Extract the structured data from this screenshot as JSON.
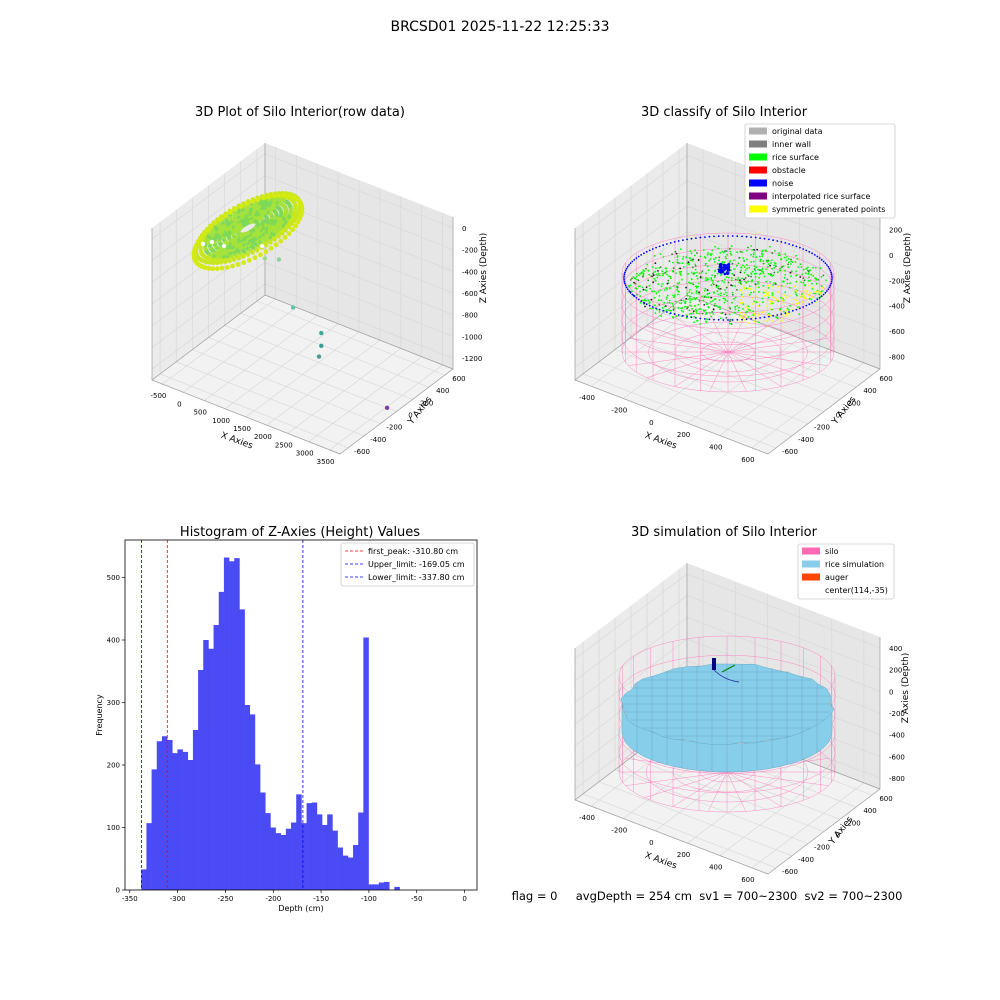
{
  "suptitle": "BRCSD01 2025-11-22 12:25:33",
  "footer": "flag = 0     avgDepth = 254 cm  sv1 = 700~2300  sv2 = 700~2300",
  "colors": {
    "silo": "#ff69b4",
    "rice_simulation": "#87ceeb",
    "auger": "#ff4500",
    "original_data": "#b0b0b0",
    "inner_wall": "#808080",
    "rice_surface": "#00ff00",
    "obstacle": "#ff0000",
    "noise": "#0000ff",
    "interpolated": "#800080",
    "symmetric": "#ffff00",
    "hist_bar": "#4b4bf5"
  },
  "chart_data": [
    {
      "type": "scatter3d",
      "title": "3D Plot of Silo Interior(row data)",
      "xlabel": "X Axies",
      "ylabel": "Y Axies",
      "zlabel": "Z Axies (Depth)",
      "xticks": [
        "-500",
        "0",
        "500",
        "1000",
        "1500",
        "2000",
        "2500",
        "3000",
        "3500"
      ],
      "yticks": [
        "-600",
        "-400",
        "-200",
        "0",
        "200",
        "400",
        "600"
      ],
      "zticks": [
        "0",
        "-200",
        "-400",
        "-600",
        "-800",
        "-1000",
        "-1200"
      ],
      "xlim": [
        -500,
        3500
      ],
      "ylim": [
        -600,
        600
      ],
      "zlim": [
        -1200,
        0
      ],
      "outliers": [
        {
          "x": 700,
          "y": 0,
          "z": -400
        },
        {
          "x": 800,
          "y": 100,
          "z": -450
        },
        {
          "x": 1300,
          "y": 0,
          "z": -700
        },
        {
          "x": 1700,
          "y": 100,
          "z": -900
        },
        {
          "x": 1700,
          "y": 100,
          "z": -1000
        },
        {
          "x": 1750,
          "y": 50,
          "z": -1050
        },
        {
          "x": 3300,
          "y": 0,
          "z": -1200
        }
      ]
    },
    {
      "type": "scatter3d",
      "title": "3D classify of Silo Interior",
      "xlabel": "X Axies",
      "ylabel": "Y Axies",
      "zlabel": "Z Axies (Depth)",
      "xticks": [
        "-400",
        "-200",
        "0",
        "200",
        "400",
        "600"
      ],
      "yticks": [
        "-600",
        "-400",
        "-200",
        "0",
        "200",
        "400",
        "600"
      ],
      "zticks": [
        "200",
        "0",
        "-200",
        "-400",
        "-600",
        "-800"
      ],
      "legend": [
        "original data",
        "inner wall",
        "rice surface",
        "obstacle",
        "noise",
        "interpolated rice surface",
        "symmetric generated points"
      ],
      "legend_position": "top-right"
    },
    {
      "type": "bar",
      "title": "Histogram of Z-Axies (Height) Values",
      "xlabel": "Depth (cm)",
      "ylabel": "Frequency",
      "xlim": [
        -355,
        13
      ],
      "ylim": [
        0,
        560
      ],
      "xticks": [
        -350,
        -300,
        -250,
        -200,
        -150,
        -100,
        -50,
        0
      ],
      "yticks": [
        0,
        100,
        200,
        300,
        400,
        500
      ],
      "bin_start": -338,
      "bin_width": 5.4,
      "values": [
        33,
        107,
        193,
        238,
        246,
        240,
        219,
        225,
        221,
        208,
        256,
        352,
        400,
        386,
        424,
        477,
        532,
        526,
        531,
        449,
        296,
        281,
        201,
        156,
        123,
        100,
        91,
        88,
        98,
        108,
        153,
        107,
        139,
        140,
        121,
        104,
        121,
        95,
        68,
        55,
        52,
        72,
        124,
        404,
        9,
        9,
        12,
        13,
        0,
        5
      ],
      "lines": [
        {
          "label": "first_peak: -310.80 cm",
          "value": -310.8,
          "color": "#ff0000"
        },
        {
          "label": "Upper_limit: -169.05 cm",
          "value": -169.05,
          "color": "#0000ff"
        },
        {
          "label": "Lower_limit: -337.80 cm",
          "value": -337.8,
          "color": "#0000ff"
        }
      ],
      "legend_position": "top-right"
    },
    {
      "type": "surface3d",
      "title": "3D simulation of Silo Interior",
      "xlabel": "X Axies",
      "ylabel": "Y Axies",
      "zlabel": "Z Axies (Depth)",
      "xticks": [
        "-400",
        "-200",
        "0",
        "200",
        "400",
        "600"
      ],
      "yticks": [
        "-600",
        "-400",
        "-200",
        "0",
        "200",
        "400",
        "600"
      ],
      "zticks": [
        "400",
        "200",
        "0",
        "-200",
        "-400",
        "-600",
        "-800"
      ],
      "legend": [
        "silo",
        "rice simulation",
        "auger",
        "center(114,-35)"
      ],
      "legend_position": "top-right"
    }
  ]
}
